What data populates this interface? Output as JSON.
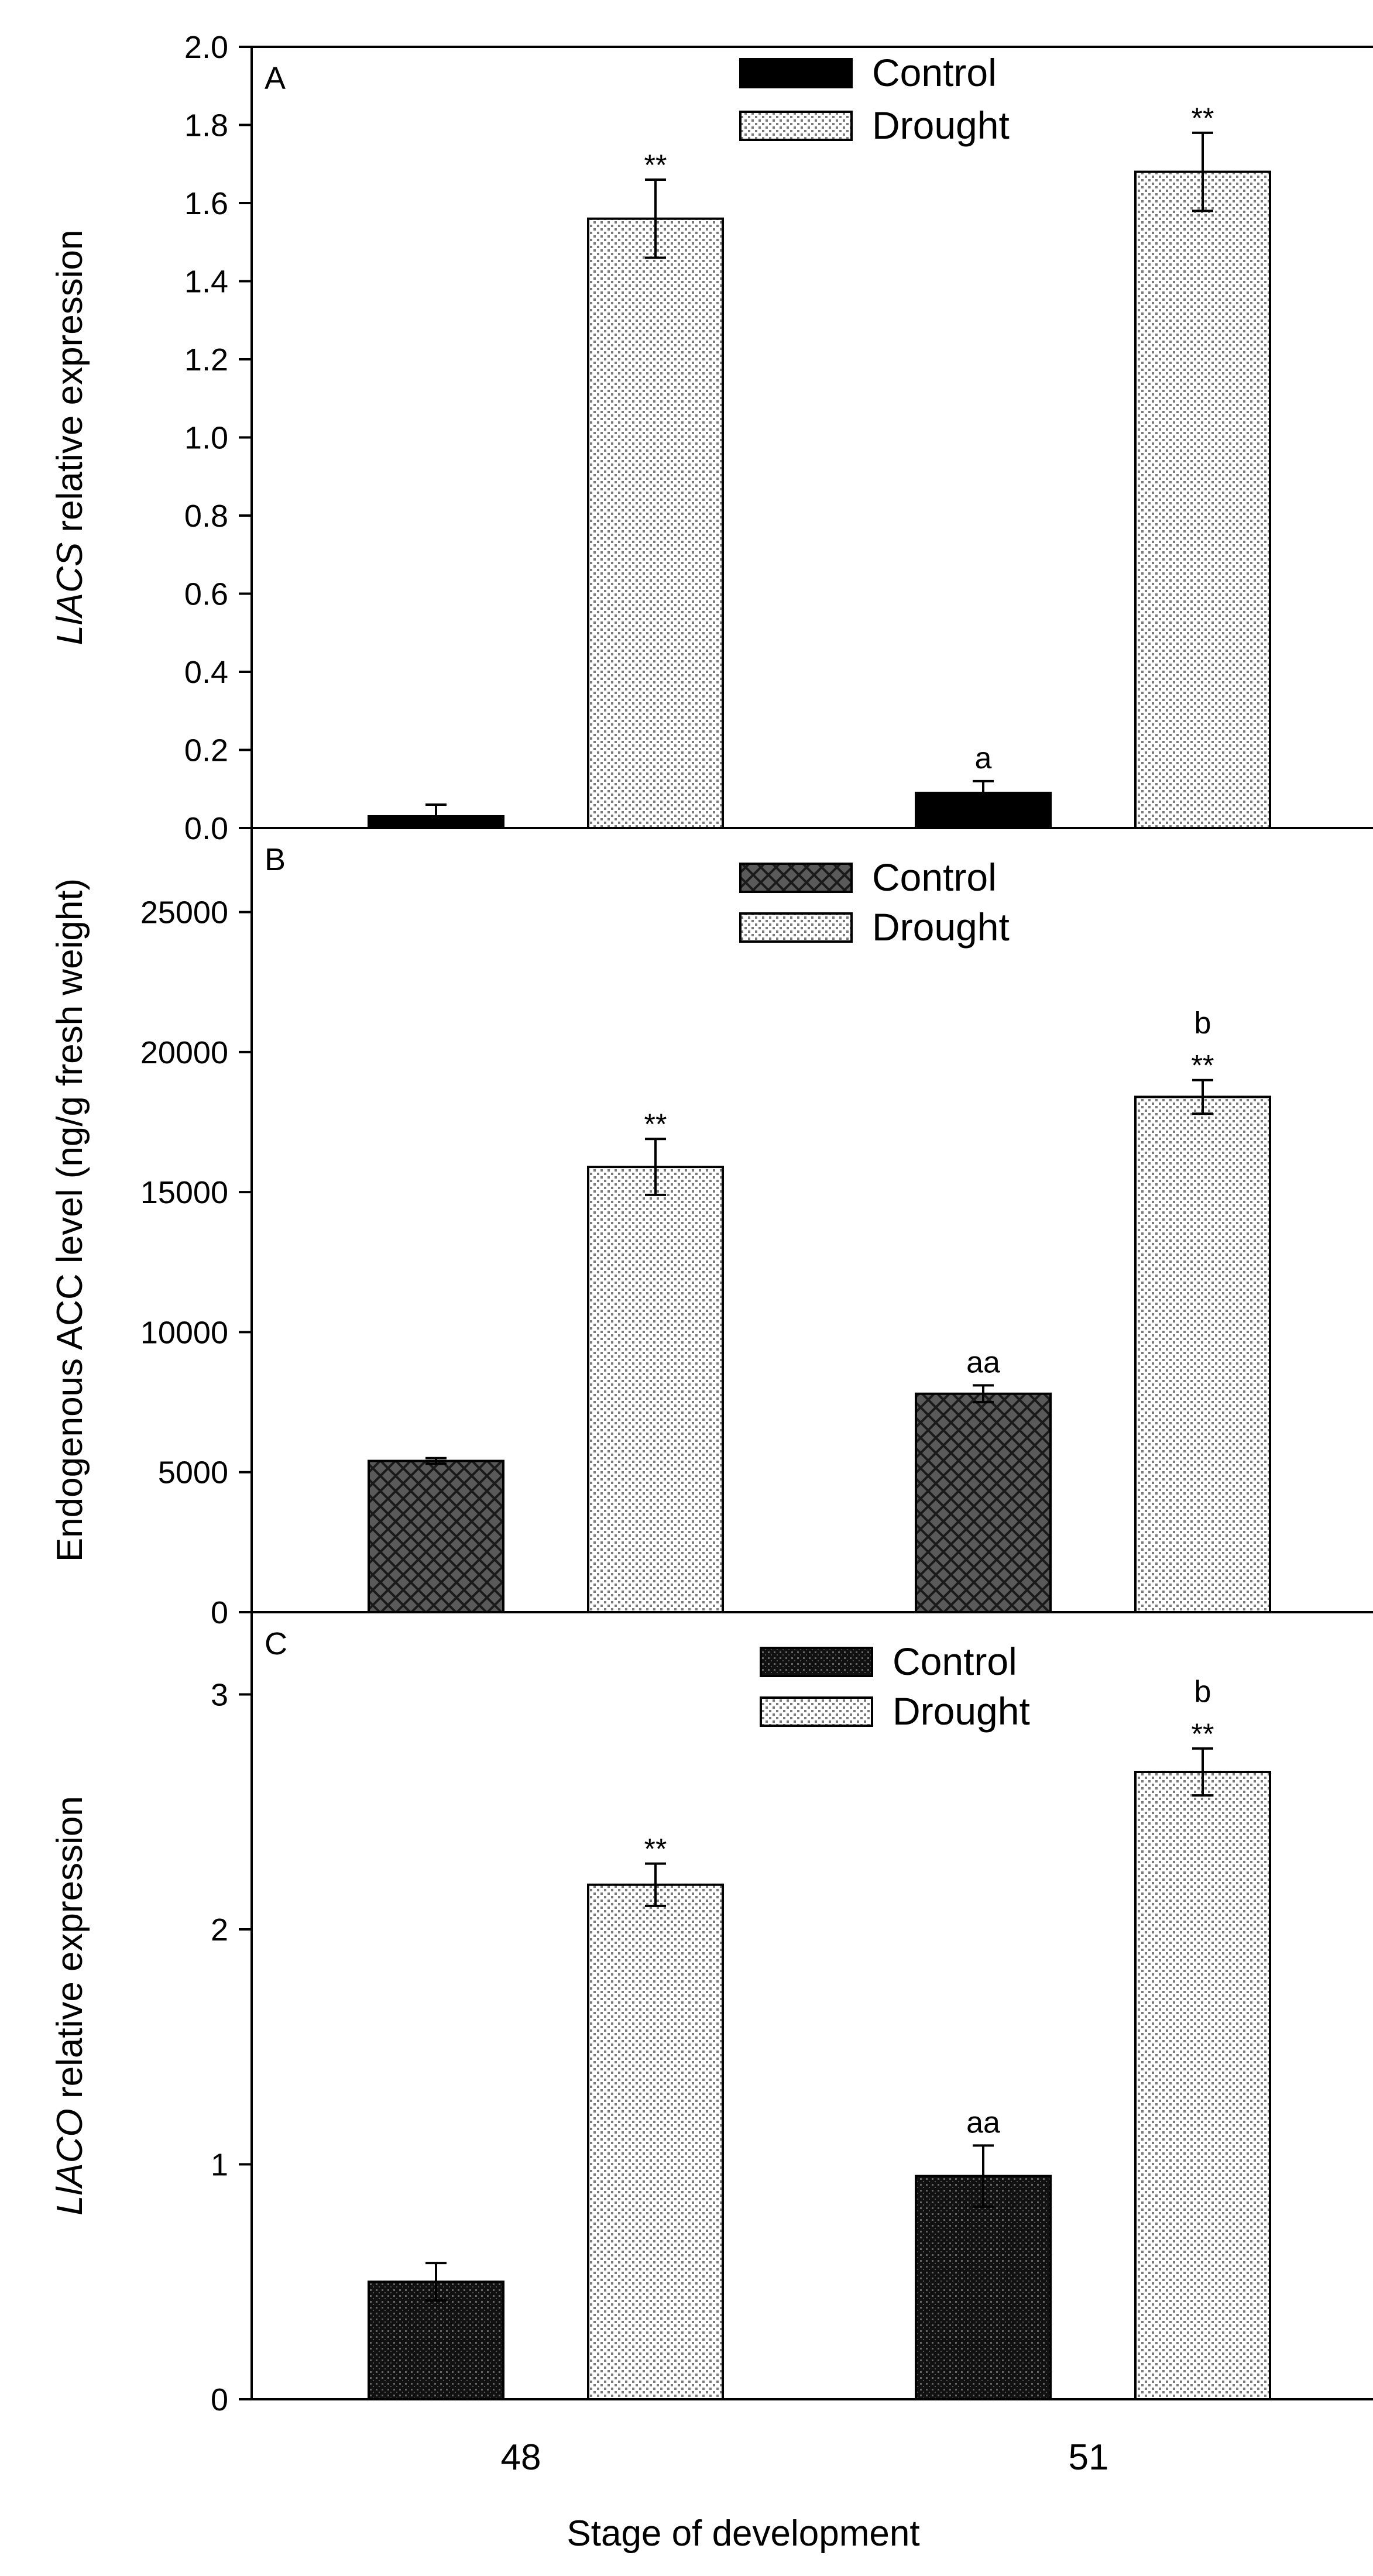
{
  "x_axis_label": "Stage of development",
  "colors": {
    "controlA": "#000000",
    "controlB": "#555555",
    "controlC": "#111111",
    "drought": "#ffffff"
  },
  "chart_data": [
    {
      "type": "bar",
      "panel": "A",
      "ylabel_italic": "LlACS",
      "ylabel_rest": " relative expression",
      "categories": [
        "48",
        "51"
      ],
      "ylim": [
        0,
        2.0
      ],
      "yticks": [
        "0.0",
        "0.2",
        "0.4",
        "0.6",
        "0.8",
        "1.0",
        "1.2",
        "1.4",
        "1.6",
        "1.8",
        "2.0"
      ],
      "legend": [
        "Control",
        "Drought"
      ],
      "series": [
        {
          "name": "Control",
          "values": [
            0.03,
            0.09
          ],
          "errors": [
            0.03,
            0.03
          ],
          "annotations": [
            "",
            "a"
          ],
          "stars": [
            "",
            ""
          ]
        },
        {
          "name": "Drought",
          "values": [
            1.56,
            1.68
          ],
          "errors": [
            0.1,
            0.1
          ],
          "annotations": [
            "",
            ""
          ],
          "stars": [
            "**",
            "**"
          ]
        }
      ]
    },
    {
      "type": "bar",
      "panel": "B",
      "ylabel_italic": "",
      "ylabel_rest": "Endogenous ACC level (ng/g fresh weight)",
      "categories": [
        "48",
        "51"
      ],
      "ylim": [
        0,
        28000
      ],
      "yticks": [
        "0",
        "5000",
        "10000",
        "15000",
        "20000",
        "25000"
      ],
      "legend": [
        "Control",
        "Drought"
      ],
      "series": [
        {
          "name": "Control",
          "values": [
            5400,
            7800
          ],
          "errors": [
            100,
            300
          ],
          "annotations": [
            "",
            "aa"
          ],
          "stars": [
            "",
            ""
          ]
        },
        {
          "name": "Drought",
          "values": [
            15900,
            18400
          ],
          "errors": [
            1000,
            600
          ],
          "annotations": [
            "",
            "b"
          ],
          "stars": [
            "**",
            "**"
          ]
        }
      ]
    },
    {
      "type": "bar",
      "panel": "C",
      "ylabel_italic": "LlACO",
      "ylabel_rest": " relative expression",
      "categories": [
        "48",
        "51"
      ],
      "ylim": [
        0,
        3.35
      ],
      "yticks": [
        "0",
        "1",
        "2",
        "3"
      ],
      "legend": [
        "Control",
        "Drought"
      ],
      "series": [
        {
          "name": "Control",
          "values": [
            0.5,
            0.95
          ],
          "errors": [
            0.08,
            0.13
          ],
          "annotations": [
            "",
            "aa"
          ],
          "stars": [
            "",
            ""
          ]
        },
        {
          "name": "Drought",
          "values": [
            2.19,
            2.67
          ],
          "errors": [
            0.09,
            0.1
          ],
          "annotations": [
            "",
            "b"
          ],
          "stars": [
            "**",
            "**"
          ]
        }
      ]
    }
  ]
}
